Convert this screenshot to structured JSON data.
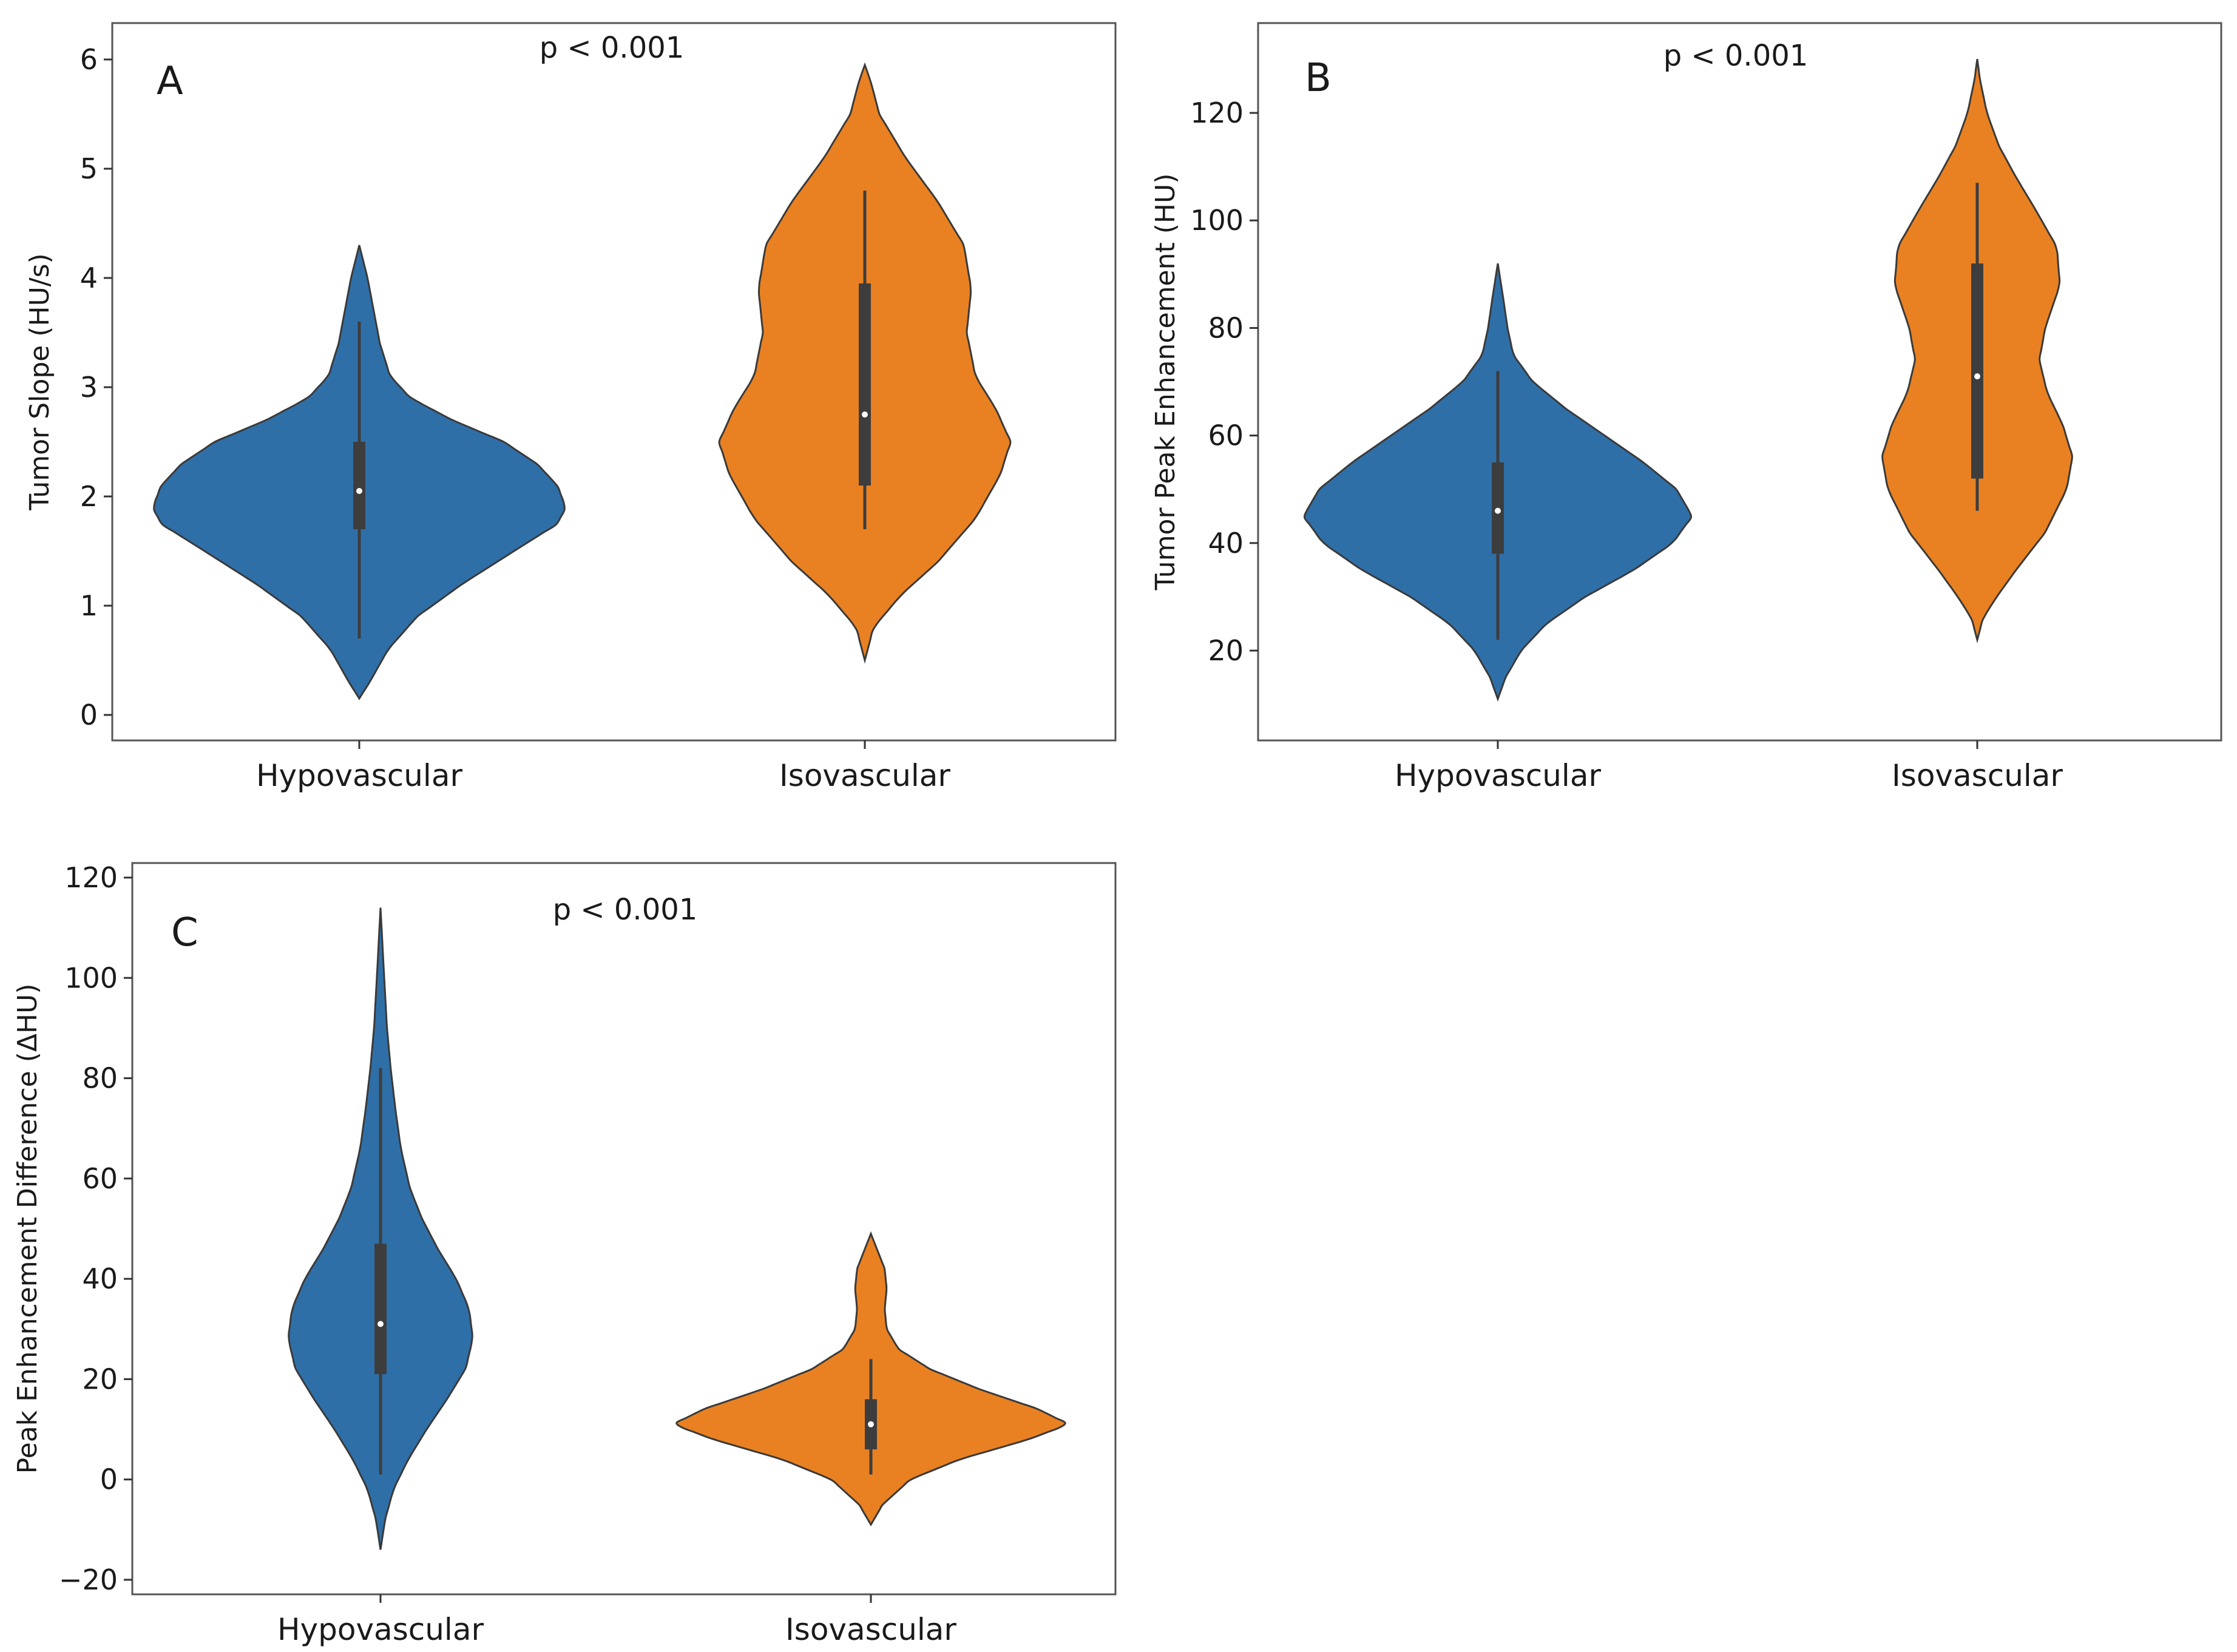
{
  "chart_data": [
    {
      "type": "violin",
      "panel": "A",
      "annotation": "p < 0.001",
      "ylabel": "Tumor Slope (HU/s)",
      "categories": [
        "Hypovascular",
        "Isovascular"
      ],
      "ylim": [
        -0.1,
        6.2
      ],
      "yticks": [
        "0",
        "1",
        "2",
        "3",
        "4",
        "5",
        "6"
      ],
      "yticks_values": [
        0,
        1,
        2,
        3,
        4,
        5,
        6
      ],
      "colors": [
        "#2f6fa8",
        "#e98122"
      ],
      "series": [
        {
          "name": "Hypovascular",
          "min": 0.15,
          "max": 4.3,
          "q1": 1.7,
          "median": 2.05,
          "q3": 2.5,
          "whisker_low": 0.7,
          "whisker_high": 3.6,
          "profile": [
            [
              0.15,
              0
            ],
            [
              0.3,
              0.05
            ],
            [
              0.6,
              0.14
            ],
            [
              0.9,
              0.28
            ],
            [
              1.2,
              0.5
            ],
            [
              1.5,
              0.75
            ],
            [
              1.75,
              0.96
            ],
            [
              1.9,
              1.0
            ],
            [
              2.1,
              0.96
            ],
            [
              2.3,
              0.86
            ],
            [
              2.5,
              0.7
            ],
            [
              2.7,
              0.45
            ],
            [
              2.9,
              0.25
            ],
            [
              3.1,
              0.15
            ],
            [
              3.4,
              0.1
            ],
            [
              3.7,
              0.07
            ],
            [
              4.0,
              0.04
            ],
            [
              4.3,
              0
            ]
          ]
        },
        {
          "name": "Isovascular",
          "min": 0.5,
          "max": 5.95,
          "q1": 2.1,
          "median": 2.75,
          "q3": 3.95,
          "whisker_low": 1.7,
          "whisker_high": 4.8,
          "profile": [
            [
              0.5,
              0
            ],
            [
              0.8,
              0.06
            ],
            [
              1.1,
              0.25
            ],
            [
              1.4,
              0.5
            ],
            [
              1.8,
              0.76
            ],
            [
              2.2,
              0.93
            ],
            [
              2.5,
              1.0
            ],
            [
              2.8,
              0.9
            ],
            [
              3.1,
              0.76
            ],
            [
              3.5,
              0.7
            ],
            [
              3.9,
              0.73
            ],
            [
              4.3,
              0.68
            ],
            [
              4.7,
              0.5
            ],
            [
              5.1,
              0.28
            ],
            [
              5.5,
              0.1
            ],
            [
              5.8,
              0.04
            ],
            [
              5.95,
              0
            ]
          ]
        }
      ]
    },
    {
      "type": "violin",
      "panel": "B",
      "annotation": "p < 0.001",
      "ylabel": "Tumor Peak Enhancement (HU)",
      "categories": [
        "Hypovascular",
        "Isovascular"
      ],
      "ylim": [
        6,
        134
      ],
      "yticks": [
        "20",
        "40",
        "60",
        "80",
        "100",
        "120"
      ],
      "yticks_values": [
        20,
        40,
        60,
        80,
        100,
        120
      ],
      "colors": [
        "#2f6fa8",
        "#e98122"
      ],
      "series": [
        {
          "name": "Hypovascular",
          "min": 11,
          "max": 92,
          "q1": 38,
          "median": 46,
          "q3": 55,
          "whisker_low": 22,
          "whisker_high": 72,
          "profile": [
            [
              11,
              0
            ],
            [
              15,
              0.04
            ],
            [
              20,
              0.12
            ],
            [
              25,
              0.25
            ],
            [
              30,
              0.45
            ],
            [
              35,
              0.7
            ],
            [
              40,
              0.9
            ],
            [
              45,
              1.0
            ],
            [
              50,
              0.92
            ],
            [
              55,
              0.75
            ],
            [
              60,
              0.55
            ],
            [
              65,
              0.35
            ],
            [
              70,
              0.18
            ],
            [
              75,
              0.08
            ],
            [
              80,
              0.05
            ],
            [
              85,
              0.03
            ],
            [
              92,
              0
            ]
          ]
        },
        {
          "name": "Isovascular",
          "min": 22,
          "max": 130,
          "q1": 52,
          "median": 71,
          "q3": 92,
          "whisker_low": 46,
          "whisker_high": 107,
          "profile": [
            [
              22,
              0
            ],
            [
              26,
              0.06
            ],
            [
              30,
              0.2
            ],
            [
              35,
              0.4
            ],
            [
              42,
              0.7
            ],
            [
              50,
              0.92
            ],
            [
              56,
              0.98
            ],
            [
              62,
              0.88
            ],
            [
              68,
              0.72
            ],
            [
              74,
              0.64
            ],
            [
              80,
              0.7
            ],
            [
              88,
              0.85
            ],
            [
              95,
              0.82
            ],
            [
              102,
              0.6
            ],
            [
              108,
              0.4
            ],
            [
              114,
              0.22
            ],
            [
              120,
              0.1
            ],
            [
              126,
              0.03
            ],
            [
              130,
              0
            ]
          ]
        }
      ]
    },
    {
      "type": "violin",
      "panel": "C",
      "annotation": "p < 0.001",
      "ylabel": "Peak Enhancement Difference (ΔHU)",
      "categories": [
        "Hypovascular",
        "Isovascular"
      ],
      "ylim": [
        -20,
        120
      ],
      "yticks": [
        "−20",
        "0",
        "20",
        "40",
        "60",
        "80",
        "100",
        "120"
      ],
      "yticks_values": [
        -20,
        0,
        20,
        40,
        60,
        80,
        100,
        120
      ],
      "colors": [
        "#2f6fa8",
        "#e98122"
      ],
      "series": [
        {
          "name": "Hypovascular",
          "min": -14,
          "max": 114,
          "q1": 21,
          "median": 31,
          "q3": 47,
          "whisker_low": 1,
          "whisker_high": 82,
          "profile": [
            [
              -14,
              0
            ],
            [
              -8,
              0.05
            ],
            [
              -2,
              0.14
            ],
            [
              4,
              0.3
            ],
            [
              10,
              0.5
            ],
            [
              16,
              0.72
            ],
            [
              22,
              0.92
            ],
            [
              28,
              1.0
            ],
            [
              34,
              0.96
            ],
            [
              40,
              0.82
            ],
            [
              46,
              0.62
            ],
            [
              52,
              0.45
            ],
            [
              58,
              0.32
            ],
            [
              66,
              0.22
            ],
            [
              74,
              0.16
            ],
            [
              82,
              0.11
            ],
            [
              90,
              0.07
            ],
            [
              100,
              0.04
            ],
            [
              114,
              0
            ]
          ]
        },
        {
          "name": "Isovascular",
          "min": -9,
          "max": 49,
          "q1": 6,
          "median": 11,
          "q3": 16,
          "whisker_low": 1,
          "whisker_high": 24,
          "profile": [
            [
              -9,
              0
            ],
            [
              -5,
              0.06
            ],
            [
              0,
              0.2
            ],
            [
              4,
              0.45
            ],
            [
              8,
              0.8
            ],
            [
              11,
              1.0
            ],
            [
              14,
              0.85
            ],
            [
              18,
              0.55
            ],
            [
              22,
              0.3
            ],
            [
              26,
              0.14
            ],
            [
              30,
              0.08
            ],
            [
              34,
              0.07
            ],
            [
              38,
              0.08
            ],
            [
              42,
              0.07
            ],
            [
              46,
              0.03
            ],
            [
              49,
              0
            ]
          ]
        }
      ]
    }
  ]
}
